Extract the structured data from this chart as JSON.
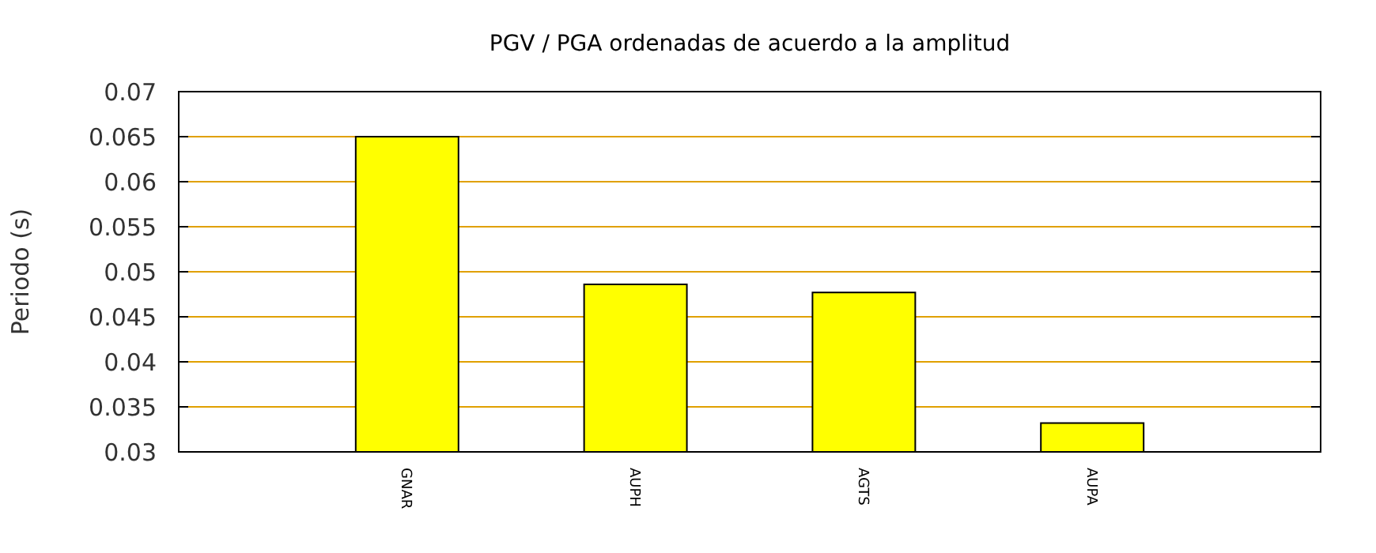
{
  "chart_data": {
    "type": "bar",
    "title": "PGV / PGA ordenadas de acuerdo a la amplitud",
    "ylabel": "Periodo (s)",
    "categories": [
      "GNAR",
      "AUPH",
      "AGTS",
      "AUPA"
    ],
    "values": [
      0.065,
      0.0486,
      0.0477,
      0.0332
    ],
    "color": "#ffff00",
    "ylim": [
      0.03,
      0.07
    ],
    "yticks": [
      0.03,
      0.035,
      0.04,
      0.045,
      0.05,
      0.055,
      0.06,
      0.065,
      0.07
    ],
    "grid": "y"
  }
}
